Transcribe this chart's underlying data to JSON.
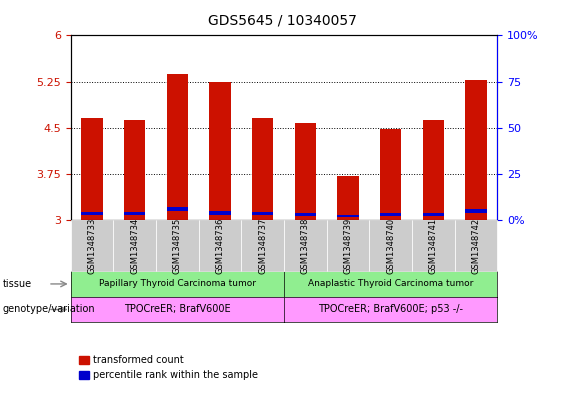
{
  "title": "GDS5645 / 10340057",
  "samples": [
    "GSM1348733",
    "GSM1348734",
    "GSM1348735",
    "GSM1348736",
    "GSM1348737",
    "GSM1348738",
    "GSM1348739",
    "GSM1348740",
    "GSM1348741",
    "GSM1348742"
  ],
  "red_values": [
    4.65,
    4.62,
    5.38,
    5.25,
    4.65,
    4.58,
    3.72,
    4.48,
    4.62,
    5.27
  ],
  "blue_values": [
    0.055,
    0.055,
    0.07,
    0.055,
    0.055,
    0.045,
    0.04,
    0.045,
    0.045,
    0.065
  ],
  "blue_bottoms": [
    3.08,
    3.08,
    3.14,
    3.09,
    3.08,
    3.07,
    3.05,
    3.07,
    3.07,
    3.12
  ],
  "ymin": 3.0,
  "ymax": 6.0,
  "yticks": [
    3.0,
    3.75,
    4.5,
    5.25,
    6.0
  ],
  "ytick_labels": [
    "3",
    "3.75",
    "4.5",
    "5.25",
    "6"
  ],
  "right_yticks_pct": [
    0,
    25,
    50,
    75,
    100
  ],
  "right_ytick_labels": [
    "0%",
    "25",
    "50",
    "75",
    "100%"
  ],
  "grid_lines": [
    3.75,
    4.5,
    5.25
  ],
  "tissue_labels": [
    "Papillary Thyroid Carcinoma tumor",
    "Anaplastic Thyroid Carcinoma tumor"
  ],
  "tissue_split": 5,
  "genotype_labels": [
    "TPOCreER; BrafV600E",
    "TPOCreER; BrafV600E; p53 -/-"
  ],
  "tissue_color": "#90EE90",
  "genotype_color": "#FF99FF",
  "bar_color": "#CC1100",
  "blue_color": "#0000CC",
  "tick_bg_color": "#CCCCCC",
  "left_tick_color": "#CC1100",
  "right_tick_color": "#0000FF",
  "bar_width": 0.5,
  "tissue_label_row": "tissue",
  "genotype_label_row": "genotype/variation"
}
